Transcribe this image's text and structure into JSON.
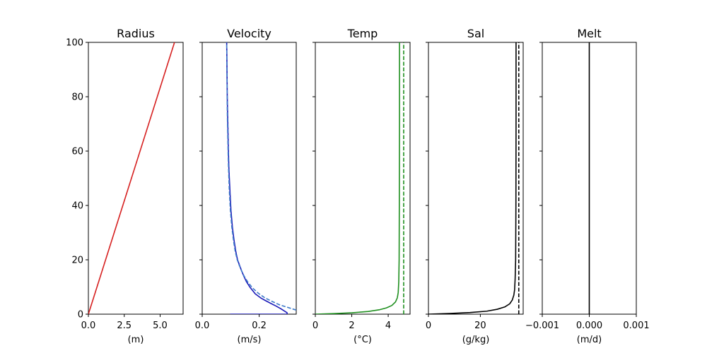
{
  "chart_data": [
    {
      "type": "line",
      "title": "Radius",
      "xlabel": "(m)",
      "ylabel": "",
      "xlim": [
        0,
        6.6
      ],
      "ylim": [
        0,
        100
      ],
      "xticks": [
        0,
        2.5,
        5.0
      ],
      "xtick_labels": [
        "0.0",
        "2.5",
        "5.0"
      ],
      "yticks": [
        0,
        20,
        40,
        60,
        80,
        100
      ],
      "ytick_labels": [
        "0",
        "20",
        "40",
        "60",
        "80",
        "100"
      ],
      "series": [
        {
          "color": "#d62020",
          "dashed": false,
          "x": [
            0,
            6.0
          ],
          "y": [
            0,
            100
          ]
        }
      ]
    },
    {
      "type": "line",
      "title": "Velocity",
      "xlabel": "(m/s)",
      "ylabel": "",
      "xlim": [
        0,
        0.33
      ],
      "ylim": [
        0,
        100
      ],
      "xticks": [
        0,
        0.2
      ],
      "xtick_labels": [
        "0.0",
        "0.2"
      ],
      "yticks": [
        0,
        20,
        40,
        60,
        80,
        100
      ],
      "ytick_labels": [],
      "series": [
        {
          "color": "#1a1ab8",
          "dashed": false,
          "x": [
            0.098,
            0.298,
            0.298,
            0.291,
            0.276,
            0.259,
            0.24,
            0.222,
            0.205,
            0.186,
            0.167,
            0.155,
            0.146,
            0.138,
            0.131,
            0.124,
            0.118,
            0.112,
            0.106,
            0.101,
            0.098,
            0.0935,
            0.0915,
            0.09,
            0.088,
            0.087,
            0.086
          ],
          "y": [
            0,
            0,
            0.5,
            1,
            2,
            3,
            4,
            5,
            6,
            7.5,
            10,
            12,
            14,
            16,
            18,
            20,
            23,
            27,
            32,
            38,
            44,
            54,
            62,
            70,
            80,
            90,
            100
          ]
        },
        {
          "color": "#3b78c8",
          "dashed": true,
          "x": [
            0.33,
            0.3,
            0.27,
            0.245,
            0.22,
            0.197,
            0.177,
            0.16,
            0.147,
            0.138,
            0.13,
            0.123,
            0.116,
            0.11,
            0.104,
            0.099,
            0.095,
            0.092,
            0.09,
            0.088,
            0.087,
            0.086
          ],
          "y": [
            1.5,
            2.5,
            3.5,
            4.7,
            6,
            7.7,
            9.6,
            11.8,
            14,
            16,
            18,
            20,
            23,
            27,
            32,
            38,
            46,
            55,
            64,
            75,
            88,
            100
          ]
        }
      ]
    },
    {
      "type": "line",
      "title": "Temp",
      "xlabel": "(°C)",
      "ylabel": "",
      "xlim": [
        0,
        5.2
      ],
      "ylim": [
        0,
        100
      ],
      "xticks": [
        0,
        2,
        4
      ],
      "xtick_labels": [
        "0",
        "2",
        "4"
      ],
      "yticks": [
        0,
        20,
        40,
        60,
        80,
        100
      ],
      "ytick_labels": [],
      "series": [
        {
          "color": "#1f8f1f",
          "dashed": false,
          "x": [
            0,
            1.0,
            2.0,
            2.9,
            3.5,
            3.9,
            4.2,
            4.4,
            4.5,
            4.55,
            4.58,
            4.6,
            4.61,
            4.62,
            4.62
          ],
          "y": [
            0,
            0.2,
            0.5,
            1,
            1.6,
            2.3,
            3.2,
            4.5,
            6,
            8,
            12,
            20,
            40,
            70,
            100
          ]
        },
        {
          "color": "#1f8f1f",
          "dashed": true,
          "x": [
            4.85,
            4.85
          ],
          "y": [
            0,
            100
          ]
        }
      ]
    },
    {
      "type": "line",
      "title": "Sal",
      "xlabel": "(g/kg)",
      "ylabel": "",
      "xlim": [
        0,
        36.5
      ],
      "ylim": [
        0,
        100
      ],
      "xticks": [
        0,
        20
      ],
      "xtick_labels": [
        "0",
        "20"
      ],
      "yticks": [
        0,
        20,
        40,
        60,
        80,
        100
      ],
      "ytick_labels": [],
      "series": [
        {
          "color": "#000000",
          "dashed": false,
          "x": [
            0,
            8,
            16,
            22.5,
            26.5,
            29.5,
            31.3,
            32.3,
            32.9,
            33.2,
            33.4,
            33.6,
            33.7,
            33.75,
            33.75
          ],
          "y": [
            0,
            0.25,
            0.6,
            1.1,
            1.8,
            2.7,
            3.8,
            5.2,
            7,
            9,
            13,
            20,
            40,
            70,
            100
          ]
        },
        {
          "color": "#000000",
          "dashed": true,
          "x": [
            34.8,
            34.8
          ],
          "y": [
            0,
            100
          ]
        }
      ]
    },
    {
      "type": "line",
      "title": "Melt",
      "xlabel": "(m/d)",
      "ylabel": "",
      "xlim": [
        -0.001,
        0.001
      ],
      "ylim": [
        0,
        100
      ],
      "xticks": [
        -0.001,
        0.0,
        0.001
      ],
      "xtick_labels": [
        "−0.001",
        "0.000",
        "0.001"
      ],
      "yticks": [
        0,
        20,
        40,
        60,
        80,
        100
      ],
      "ytick_labels": [],
      "series": [
        {
          "color": "#000000",
          "dashed": false,
          "x": [
            0,
            0
          ],
          "y": [
            0,
            100
          ]
        }
      ]
    }
  ]
}
